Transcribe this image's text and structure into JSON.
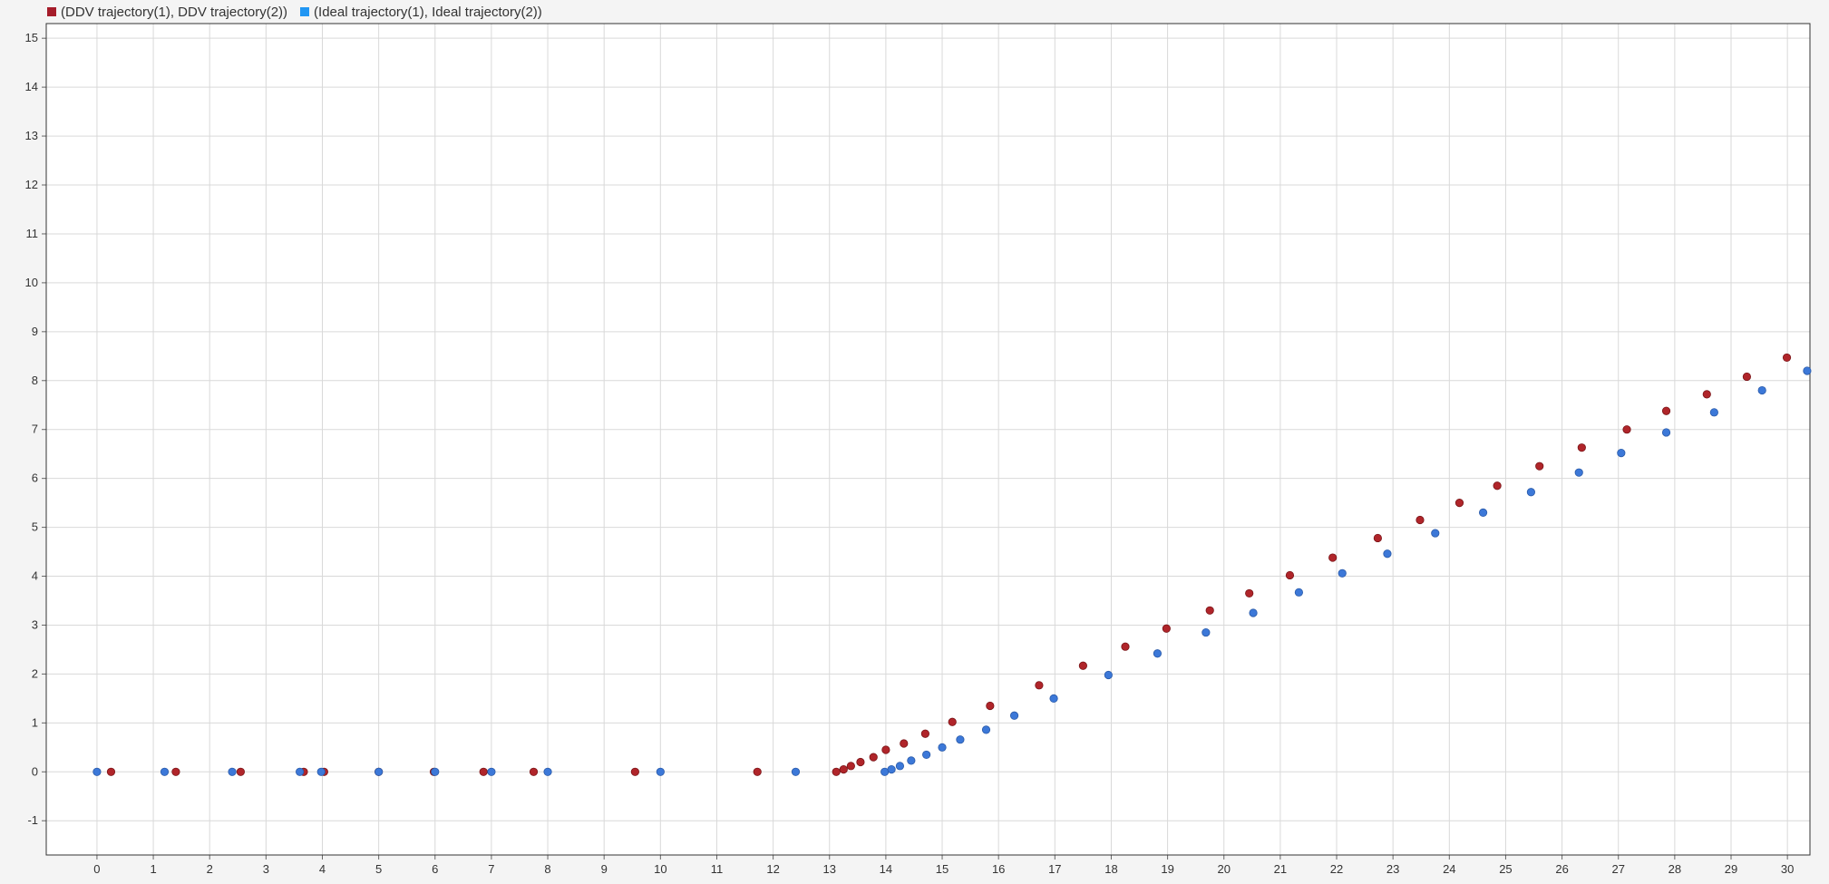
{
  "chart_data": {
    "type": "scatter",
    "title": "",
    "xlabel": "",
    "ylabel": "",
    "xlim": [
      -0.9,
      30.4
    ],
    "ylim": [
      -1.7,
      15.3
    ],
    "grid": true,
    "legend_position": "top-left",
    "x_ticks": [
      0,
      1,
      2,
      3,
      4,
      5,
      6,
      7,
      8,
      9,
      10,
      11,
      12,
      13,
      14,
      15,
      16,
      17,
      18,
      19,
      20,
      21,
      22,
      23,
      24,
      25,
      26,
      27,
      28,
      29,
      30
    ],
    "y_ticks": [
      -1,
      0,
      1,
      2,
      3,
      4,
      5,
      6,
      7,
      8,
      9,
      10,
      11,
      12,
      13,
      14,
      15
    ],
    "series": [
      {
        "name": "(DDV trajectory(1), DDV trajectory(2))",
        "color": "#b0252a",
        "legend_color": "#a51c2a",
        "points": [
          [
            0.25,
            0
          ],
          [
            1.4,
            0
          ],
          [
            2.55,
            0
          ],
          [
            3.67,
            0
          ],
          [
            4.03,
            0
          ],
          [
            5.0,
            0
          ],
          [
            5.98,
            0
          ],
          [
            6.86,
            0
          ],
          [
            7.75,
            0
          ],
          [
            9.55,
            0
          ],
          [
            11.72,
            0
          ],
          [
            13.12,
            0
          ],
          [
            13.25,
            0.05
          ],
          [
            13.38,
            0.12
          ],
          [
            13.55,
            0.2
          ],
          [
            13.78,
            0.3
          ],
          [
            14.0,
            0.45
          ],
          [
            14.32,
            0.58
          ],
          [
            14.7,
            0.78
          ],
          [
            15.18,
            1.02
          ],
          [
            15.85,
            1.35
          ],
          [
            16.72,
            1.77
          ],
          [
            17.5,
            2.17
          ],
          [
            18.25,
            2.56
          ],
          [
            18.98,
            2.93
          ],
          [
            19.75,
            3.3
          ],
          [
            20.45,
            3.65
          ],
          [
            21.17,
            4.02
          ],
          [
            21.93,
            4.38
          ],
          [
            22.73,
            4.78
          ],
          [
            23.48,
            5.15
          ],
          [
            24.18,
            5.5
          ],
          [
            24.85,
            5.85
          ],
          [
            25.6,
            6.25
          ],
          [
            26.35,
            6.63
          ],
          [
            27.15,
            7.0
          ],
          [
            27.85,
            7.38
          ],
          [
            28.57,
            7.72
          ],
          [
            29.28,
            8.08
          ],
          [
            29.99,
            8.47
          ]
        ]
      },
      {
        "name": "(Ideal trajectory(1), Ideal trajectory(2))",
        "color": "#3c78d8",
        "legend_color": "#2196f3",
        "points": [
          [
            0,
            0
          ],
          [
            1.2,
            0
          ],
          [
            2.4,
            0
          ],
          [
            3.6,
            0
          ],
          [
            3.98,
            0
          ],
          [
            5.0,
            0
          ],
          [
            6.0,
            0
          ],
          [
            7.0,
            0
          ],
          [
            8.0,
            0
          ],
          [
            10.0,
            0
          ],
          [
            12.4,
            0
          ],
          [
            13.98,
            0
          ],
          [
            14.1,
            0.05
          ],
          [
            14.25,
            0.12
          ],
          [
            14.45,
            0.23
          ],
          [
            14.72,
            0.35
          ],
          [
            15.0,
            0.5
          ],
          [
            15.32,
            0.66
          ],
          [
            15.78,
            0.86
          ],
          [
            16.28,
            1.15
          ],
          [
            16.98,
            1.5
          ],
          [
            17.95,
            1.98
          ],
          [
            18.82,
            2.42
          ],
          [
            19.68,
            2.85
          ],
          [
            20.52,
            3.25
          ],
          [
            21.33,
            3.67
          ],
          [
            22.1,
            4.06
          ],
          [
            22.9,
            4.46
          ],
          [
            23.75,
            4.88
          ],
          [
            24.6,
            5.3
          ],
          [
            25.45,
            5.72
          ],
          [
            26.3,
            6.12
          ],
          [
            27.05,
            6.52
          ],
          [
            27.85,
            6.94
          ],
          [
            28.7,
            7.35
          ],
          [
            29.55,
            7.8
          ],
          [
            30.35,
            8.2
          ]
        ]
      }
    ]
  }
}
